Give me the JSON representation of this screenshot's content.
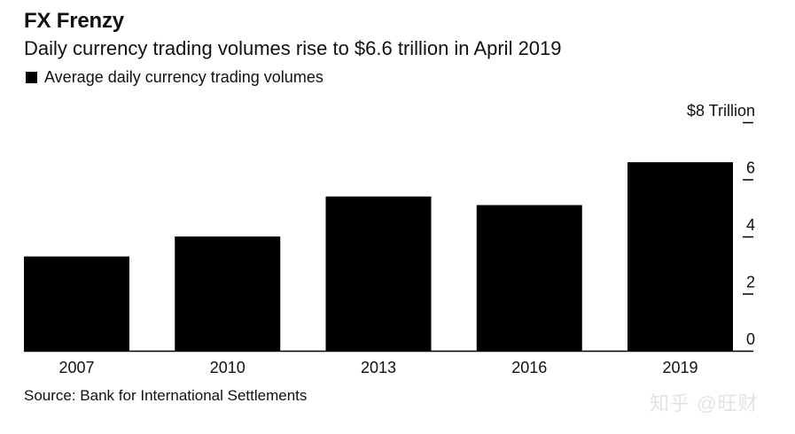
{
  "title": "FX Frenzy",
  "subtitle": "Daily currency trading volumes rise to $6.6 trillion in April 2019",
  "legend_label": "Average daily currency trading volumes",
  "source": "Source: Bank for International Settlements",
  "watermark": "知乎 @旺财",
  "colors": {
    "bar": "#000000",
    "axis": "#000000"
  },
  "chart_data": {
    "type": "bar",
    "title": "FX Frenzy",
    "subtitle": "Daily currency trading volumes rise to $6.6 trillion in April 2019",
    "categories": [
      "2007",
      "2010",
      "2013",
      "2016",
      "2019"
    ],
    "series": [
      {
        "name": "Average daily currency trading volumes",
        "values": [
          3.3,
          4.0,
          5.4,
          5.1,
          6.6
        ]
      }
    ],
    "ylim": [
      0,
      8
    ],
    "yticks": [
      0,
      2,
      4,
      6,
      8
    ],
    "ytick_labels": [
      "0",
      "2",
      "4",
      "6",
      "$8 Trillion"
    ],
    "y_axis_position": "right",
    "grid": false,
    "legend_position": "top-left"
  }
}
